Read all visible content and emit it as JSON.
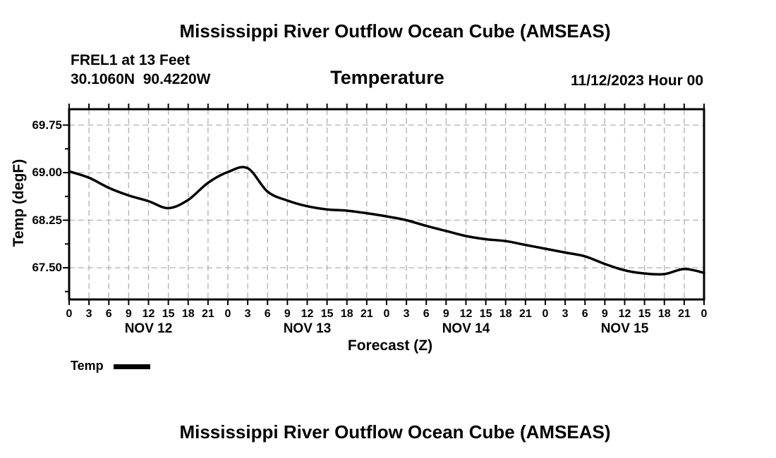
{
  "header": {
    "title": "Mississippi River Outflow Ocean Cube (AMSEAS)",
    "station_line1": "FREL1 at 13 Feet",
    "station_line2": "30.1060N  90.4220W",
    "panel_title": "Temperature",
    "run_label": "11/12/2023 Hour 00"
  },
  "footer": {
    "next_chart_title": "Mississippi River Outflow Ocean Cube (AMSEAS)"
  },
  "colors": {
    "line": "#000000",
    "frame": "#000000",
    "grid": "#b0b0b0",
    "background": "#ffffff"
  },
  "chart_data": {
    "type": "line",
    "title": "Temperature",
    "xlabel": "Forecast (Z)",
    "ylabel": "Temp (degF)",
    "xlim_hours": [
      0,
      96
    ],
    "ylim": [
      67.0,
      70.0
    ],
    "grid": {
      "show": true,
      "style": "dashed",
      "color": "#b0b0b0"
    },
    "x_hours": [
      0,
      3,
      6,
      9,
      12,
      15,
      18,
      21,
      24,
      27,
      30,
      33,
      36,
      39,
      42,
      45,
      48,
      51,
      54,
      57,
      60,
      63,
      66,
      69,
      72,
      75,
      78,
      81,
      84,
      87,
      90,
      93,
      96
    ],
    "series": [
      {
        "name": "Temp",
        "color": "#000000",
        "values": [
          69.02,
          68.92,
          68.76,
          68.64,
          68.55,
          68.44,
          68.57,
          68.84,
          69.01,
          69.07,
          68.7,
          68.56,
          68.47,
          68.42,
          68.4,
          68.36,
          68.31,
          68.25,
          68.16,
          68.08,
          68.0,
          67.95,
          67.92,
          67.86,
          67.8,
          67.74,
          67.68,
          67.56,
          67.46,
          67.41,
          67.4,
          67.48,
          67.42
        ]
      }
    ],
    "x_ticks": [
      {
        "h": 0,
        "label": "0"
      },
      {
        "h": 3,
        "label": "3"
      },
      {
        "h": 6,
        "label": "6"
      },
      {
        "h": 9,
        "label": "9"
      },
      {
        "h": 12,
        "label": "12"
      },
      {
        "h": 15,
        "label": "15"
      },
      {
        "h": 18,
        "label": "18"
      },
      {
        "h": 21,
        "label": "21"
      },
      {
        "h": 24,
        "label": "0"
      },
      {
        "h": 27,
        "label": "3"
      },
      {
        "h": 30,
        "label": "6"
      },
      {
        "h": 33,
        "label": "9"
      },
      {
        "h": 36,
        "label": "12"
      },
      {
        "h": 39,
        "label": "15"
      },
      {
        "h": 42,
        "label": "18"
      },
      {
        "h": 45,
        "label": "21"
      },
      {
        "h": 48,
        "label": "0"
      },
      {
        "h": 51,
        "label": "3"
      },
      {
        "h": 54,
        "label": "6"
      },
      {
        "h": 57,
        "label": "9"
      },
      {
        "h": 60,
        "label": "12"
      },
      {
        "h": 63,
        "label": "15"
      },
      {
        "h": 66,
        "label": "18"
      },
      {
        "h": 69,
        "label": "21"
      },
      {
        "h": 72,
        "label": "0"
      },
      {
        "h": 75,
        "label": "3"
      },
      {
        "h": 78,
        "label": "6"
      },
      {
        "h": 81,
        "label": "9"
      },
      {
        "h": 84,
        "label": "12"
      },
      {
        "h": 87,
        "label": "15"
      },
      {
        "h": 90,
        "label": "18"
      },
      {
        "h": 93,
        "label": "21"
      },
      {
        "h": 96,
        "label": "0"
      }
    ],
    "y_major_ticks": [
      {
        "v": 69.75,
        "label": "69.75"
      },
      {
        "v": 69.0,
        "label": "69.00"
      },
      {
        "v": 68.25,
        "label": "68.25"
      },
      {
        "v": 67.5,
        "label": "67.50"
      }
    ],
    "y_minor_ticks": [
      69.375,
      68.625,
      67.875,
      67.125
    ],
    "day_labels": [
      {
        "label": "NOV 12",
        "center_hour": 12
      },
      {
        "label": "NOV 13",
        "center_hour": 36
      },
      {
        "label": "NOV 14",
        "center_hour": 60
      },
      {
        "label": "NOV 15",
        "center_hour": 84
      }
    ],
    "legend": {
      "label": "Temp",
      "position": "below-left"
    }
  }
}
